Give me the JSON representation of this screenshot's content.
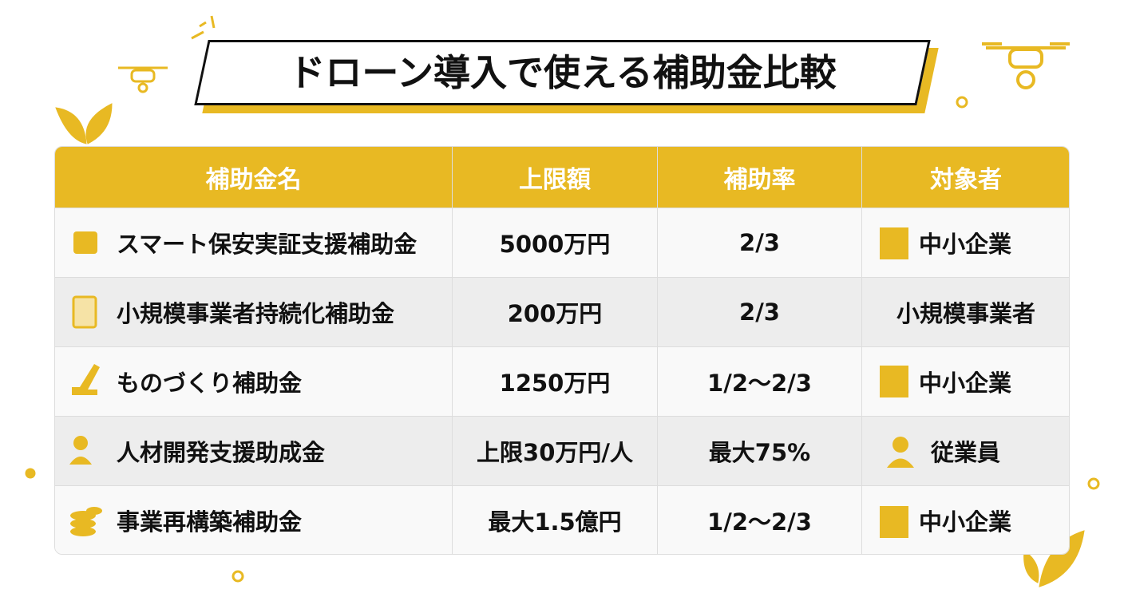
{
  "header": {
    "title": "ドローン導入で使える補助金比較"
  },
  "table": {
    "columns": [
      "補助金名",
      "上限額",
      "補助率",
      "対象者"
    ],
    "rows": [
      [
        "スマート保安実証支援補助金",
        "5000万円",
        "2/3",
        "中小企業"
      ],
      [
        "小規模事業者持続化補助金",
        "200万円",
        "2/3",
        "小規模事業者"
      ],
      [
        "ものづくり補助金",
        "1250万円",
        "1/2〜2/3",
        "中小企業"
      ],
      [
        "人材開発支援助成金",
        "上限30万円/人",
        "最大75%",
        "従業員"
      ],
      [
        "事業再構築補助金",
        "最大1.5億円",
        "1/2〜2/3",
        "中小企業"
      ]
    ]
  }
}
